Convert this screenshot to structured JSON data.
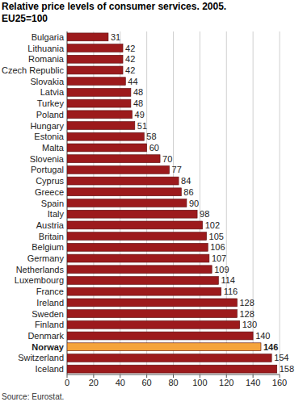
{
  "chart_data": {
    "type": "bar",
    "orientation": "horizontal",
    "title": "Relative price levels of consumer services. 2005.",
    "subtitle": "EU25=100",
    "annotations": [
      "Source: Eurostat."
    ],
    "categories": [
      "Bulgaria",
      "Lithuania",
      "Romania",
      "Czech Republic",
      "Slovakia",
      "Latvia",
      "Turkey",
      "Poland",
      "Hungary",
      "Estonia",
      "Malta",
      "Slovenia",
      "Portugal",
      "Cyprus",
      "Greece",
      "Spain",
      "Italy",
      "Austria",
      "Britain",
      "Belgium",
      "Germany",
      "Netherlands",
      "Luxembourg",
      "France",
      "Ireland",
      "Sweden",
      "Finland",
      "Denmark",
      "Norway",
      "Switzerland",
      "Iceland"
    ],
    "values": [
      31,
      42,
      42,
      42,
      44,
      48,
      48,
      49,
      51,
      58,
      60,
      70,
      77,
      84,
      86,
      90,
      98,
      102,
      105,
      106,
      107,
      109,
      114,
      116,
      128,
      128,
      130,
      140,
      146,
      154,
      158
    ],
    "colors": [
      "#9c1a1c",
      "#9c1a1c",
      "#9c1a1c",
      "#9c1a1c",
      "#9c1a1c",
      "#9c1a1c",
      "#9c1a1c",
      "#9c1a1c",
      "#9c1a1c",
      "#9c1a1c",
      "#9c1a1c",
      "#9c1a1c",
      "#9c1a1c",
      "#9c1a1c",
      "#9c1a1c",
      "#9c1a1c",
      "#9c1a1c",
      "#9c1a1c",
      "#9c1a1c",
      "#9c1a1c",
      "#9c1a1c",
      "#9c1a1c",
      "#9c1a1c",
      "#9c1a1c",
      "#9c1a1c",
      "#9c1a1c",
      "#9c1a1c",
      "#9c1a1c",
      "#f5a43c",
      "#9c1a1c",
      "#9c1a1c"
    ],
    "xlim": [
      0,
      160
    ],
    "xticks": [
      0,
      20,
      40,
      60,
      80,
      100,
      120,
      140,
      160
    ],
    "grid": true,
    "data_labels": true
  }
}
